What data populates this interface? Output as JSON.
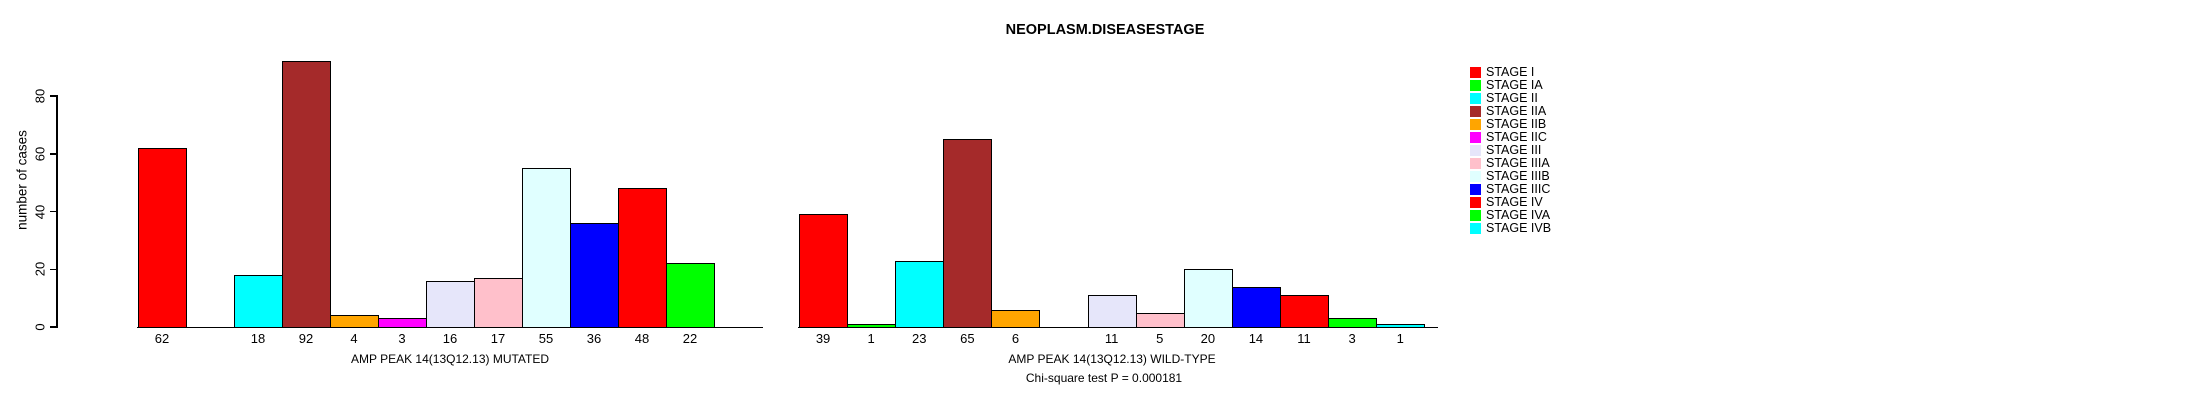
{
  "title": "NEOPLASM.DISEASESTAGE",
  "y_axis": {
    "label": "number of cases",
    "ticks": [
      0,
      20,
      40,
      60,
      80
    ]
  },
  "groups": [
    {
      "xlabel": "AMP PEAK 14(13Q12.13) MUTATED"
    },
    {
      "xlabel": "AMP PEAK 14(13Q12.13) WILD-TYPE"
    }
  ],
  "footer": {
    "annotation": "Chi-square test P = 0.000181"
  },
  "chart_data": {
    "type": "bar",
    "title": "NEOPLASM.DISEASESTAGE",
    "xlabel": "",
    "ylabel": "number of cases",
    "ylim": [
      0,
      93
    ],
    "yticks": [
      0,
      20,
      40,
      60,
      80
    ],
    "grid": false,
    "legend_position": "right",
    "categories": [
      "STAGE I",
      "STAGE IA",
      "STAGE II",
      "STAGE IIA",
      "STAGE IIB",
      "STAGE IIC",
      "STAGE III",
      "STAGE IIIA",
      "STAGE IIIB",
      "STAGE IIIC",
      "STAGE IV",
      "STAGE IVA",
      "STAGE IVB"
    ],
    "colors": [
      "#FF0000",
      "#00FF00",
      "#00FFFF",
      "#A52A2A",
      "#FFA500",
      "#FF00FF",
      "#E6E6FA",
      "#FFC0CB",
      "#E0FFFF",
      "#0000FF",
      "#FF0000",
      "#00FF00",
      "#00FFFF"
    ],
    "series": [
      {
        "name": "AMP PEAK 14(13Q12.13) MUTATED",
        "values": [
          62,
          null,
          18,
          92,
          4,
          3,
          16,
          17,
          55,
          36,
          48,
          22,
          null
        ]
      },
      {
        "name": "AMP PEAK 14(13Q12.13) WILD-TYPE",
        "values": [
          39,
          1,
          23,
          65,
          6,
          null,
          11,
          5,
          20,
          14,
          11,
          3,
          1
        ]
      }
    ],
    "annotation": "Chi-square test P = 0.000181"
  }
}
